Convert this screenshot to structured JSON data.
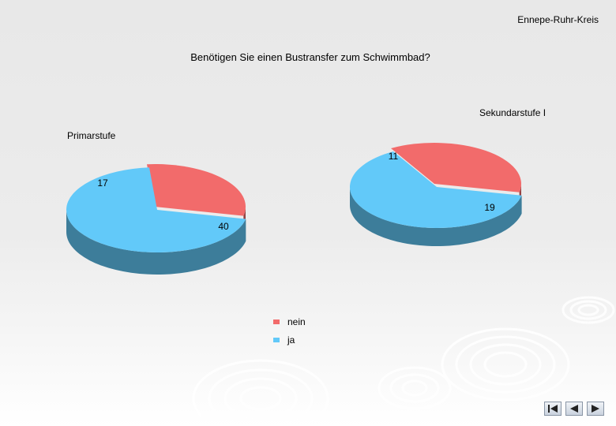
{
  "header": {
    "organization": "Ennepe-Ruhr-Kreis"
  },
  "chart_data": [
    {
      "type": "pie",
      "title": "Benötigen Sie einen Bustransfer zum Schwimmbad?",
      "series_label": "Primarstufe",
      "slices": [
        {
          "label": "nein",
          "value": 17,
          "color": "#f26b6b"
        },
        {
          "label": "ja",
          "value": 40,
          "color": "#62c9f9"
        }
      ]
    },
    {
      "type": "pie",
      "title": "Benötigen Sie einen Bustransfer zum Schwimmbad?",
      "series_label": "Sekundarstufe I",
      "slices": [
        {
          "label": "nein",
          "value": 11,
          "color": "#f26b6b"
        },
        {
          "label": "ja",
          "value": 19,
          "color": "#62c9f9"
        }
      ]
    }
  ],
  "legend": {
    "placement": "bottom-center",
    "items": [
      {
        "label": "nein",
        "color": "#f26b6b"
      },
      {
        "label": "ja",
        "color": "#62c9f9"
      }
    ]
  },
  "nav": {
    "first_icon": "first-page-icon",
    "prev_icon": "previous-page-icon",
    "next_icon": "next-page-icon"
  }
}
